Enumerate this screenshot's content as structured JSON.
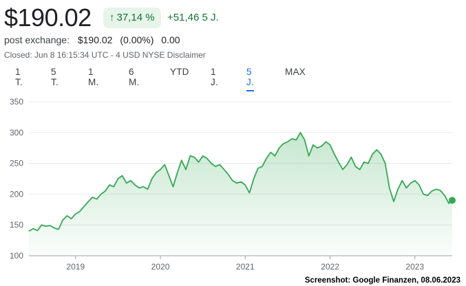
{
  "header": {
    "price": "$190.02",
    "change_percent": "37,14 %",
    "change_abs": "+51,46 5 J.",
    "post_exchange_label": "post exchange:",
    "post_exchange_price": "$190.02",
    "post_exchange_percent": "(0.00%)",
    "post_exchange_abs": "0.00",
    "closed_line": "Closed: Jun 8 16:15:34 UTC - 4 USD NYSE Disclaimer",
    "up_icon": "arrow-up-icon",
    "accent_color": "#1a73e8",
    "positive_color": "#137333"
  },
  "tabs": [
    {
      "label": "1 T.",
      "active": false
    },
    {
      "label": "5 T.",
      "active": false
    },
    {
      "label": "1 M.",
      "active": false
    },
    {
      "label": "6 M.",
      "active": false
    },
    {
      "label": "YTD",
      "active": false
    },
    {
      "label": "1 J.",
      "active": false
    },
    {
      "label": "5 J.",
      "active": true
    },
    {
      "label": "MAX",
      "active": false
    }
  ],
  "chart_data": {
    "type": "area",
    "y_ticks": [
      "350",
      "300",
      "250",
      "200",
      "150",
      "100"
    ],
    "x_ticks": [
      "2019",
      "2020",
      "2021",
      "2022",
      "2023"
    ],
    "ylim": [
      100,
      350
    ],
    "xlim": [
      2018.45,
      2023.44
    ],
    "grid": true,
    "line_color": "#34a853",
    "last_value": 190.02,
    "series": [
      {
        "points": [
          [
            2018.45,
            140
          ],
          [
            2018.5,
            144
          ],
          [
            2018.55,
            141
          ],
          [
            2018.6,
            150
          ],
          [
            2018.65,
            148
          ],
          [
            2018.7,
            149
          ],
          [
            2018.75,
            145
          ],
          [
            2018.8,
            143
          ],
          [
            2018.85,
            158
          ],
          [
            2018.9,
            165
          ],
          [
            2018.95,
            160
          ],
          [
            2019.0,
            168
          ],
          [
            2019.05,
            172
          ],
          [
            2019.1,
            180
          ],
          [
            2019.15,
            188
          ],
          [
            2019.2,
            195
          ],
          [
            2019.25,
            192
          ],
          [
            2019.3,
            200
          ],
          [
            2019.35,
            205
          ],
          [
            2019.4,
            215
          ],
          [
            2019.45,
            212
          ],
          [
            2019.5,
            225
          ],
          [
            2019.55,
            230
          ],
          [
            2019.6,
            218
          ],
          [
            2019.65,
            222
          ],
          [
            2019.7,
            215
          ],
          [
            2019.75,
            210
          ],
          [
            2019.8,
            212
          ],
          [
            2019.85,
            208
          ],
          [
            2019.9,
            225
          ],
          [
            2019.95,
            235
          ],
          [
            2020.0,
            240
          ],
          [
            2020.05,
            248
          ],
          [
            2020.1,
            230
          ],
          [
            2020.15,
            212
          ],
          [
            2020.2,
            235
          ],
          [
            2020.25,
            255
          ],
          [
            2020.3,
            240
          ],
          [
            2020.35,
            262
          ],
          [
            2020.4,
            260
          ],
          [
            2020.45,
            252
          ],
          [
            2020.5,
            262
          ],
          [
            2020.55,
            258
          ],
          [
            2020.6,
            250
          ],
          [
            2020.65,
            245
          ],
          [
            2020.7,
            248
          ],
          [
            2020.75,
            240
          ],
          [
            2020.8,
            232
          ],
          [
            2020.85,
            222
          ],
          [
            2020.9,
            218
          ],
          [
            2020.95,
            220
          ],
          [
            2021.0,
            215
          ],
          [
            2021.05,
            202
          ],
          [
            2021.1,
            225
          ],
          [
            2021.15,
            242
          ],
          [
            2021.2,
            245
          ],
          [
            2021.25,
            258
          ],
          [
            2021.3,
            268
          ],
          [
            2021.35,
            262
          ],
          [
            2021.4,
            275
          ],
          [
            2021.45,
            282
          ],
          [
            2021.5,
            285
          ],
          [
            2021.55,
            290
          ],
          [
            2021.6,
            288
          ],
          [
            2021.65,
            300
          ],
          [
            2021.7,
            288
          ],
          [
            2021.75,
            262
          ],
          [
            2021.8,
            280
          ],
          [
            2021.85,
            275
          ],
          [
            2021.9,
            278
          ],
          [
            2021.95,
            285
          ],
          [
            2022.0,
            280
          ],
          [
            2022.05,
            265
          ],
          [
            2022.1,
            252
          ],
          [
            2022.15,
            240
          ],
          [
            2022.2,
            248
          ],
          [
            2022.25,
            260
          ],
          [
            2022.3,
            245
          ],
          [
            2022.35,
            240
          ],
          [
            2022.4,
            252
          ],
          [
            2022.45,
            250
          ],
          [
            2022.5,
            265
          ],
          [
            2022.55,
            272
          ],
          [
            2022.6,
            265
          ],
          [
            2022.65,
            250
          ],
          [
            2022.7,
            210
          ],
          [
            2022.75,
            188
          ],
          [
            2022.8,
            208
          ],
          [
            2022.85,
            222
          ],
          [
            2022.9,
            210
          ],
          [
            2022.95,
            218
          ],
          [
            2023.0,
            222
          ],
          [
            2023.05,
            215
          ],
          [
            2023.1,
            200
          ],
          [
            2023.15,
            198
          ],
          [
            2023.2,
            205
          ],
          [
            2023.25,
            208
          ],
          [
            2023.3,
            206
          ],
          [
            2023.35,
            198
          ],
          [
            2023.4,
            185
          ],
          [
            2023.44,
            190
          ]
        ]
      }
    ]
  },
  "credit": "Screenshot: Google Finanzen, 08.06.2023"
}
